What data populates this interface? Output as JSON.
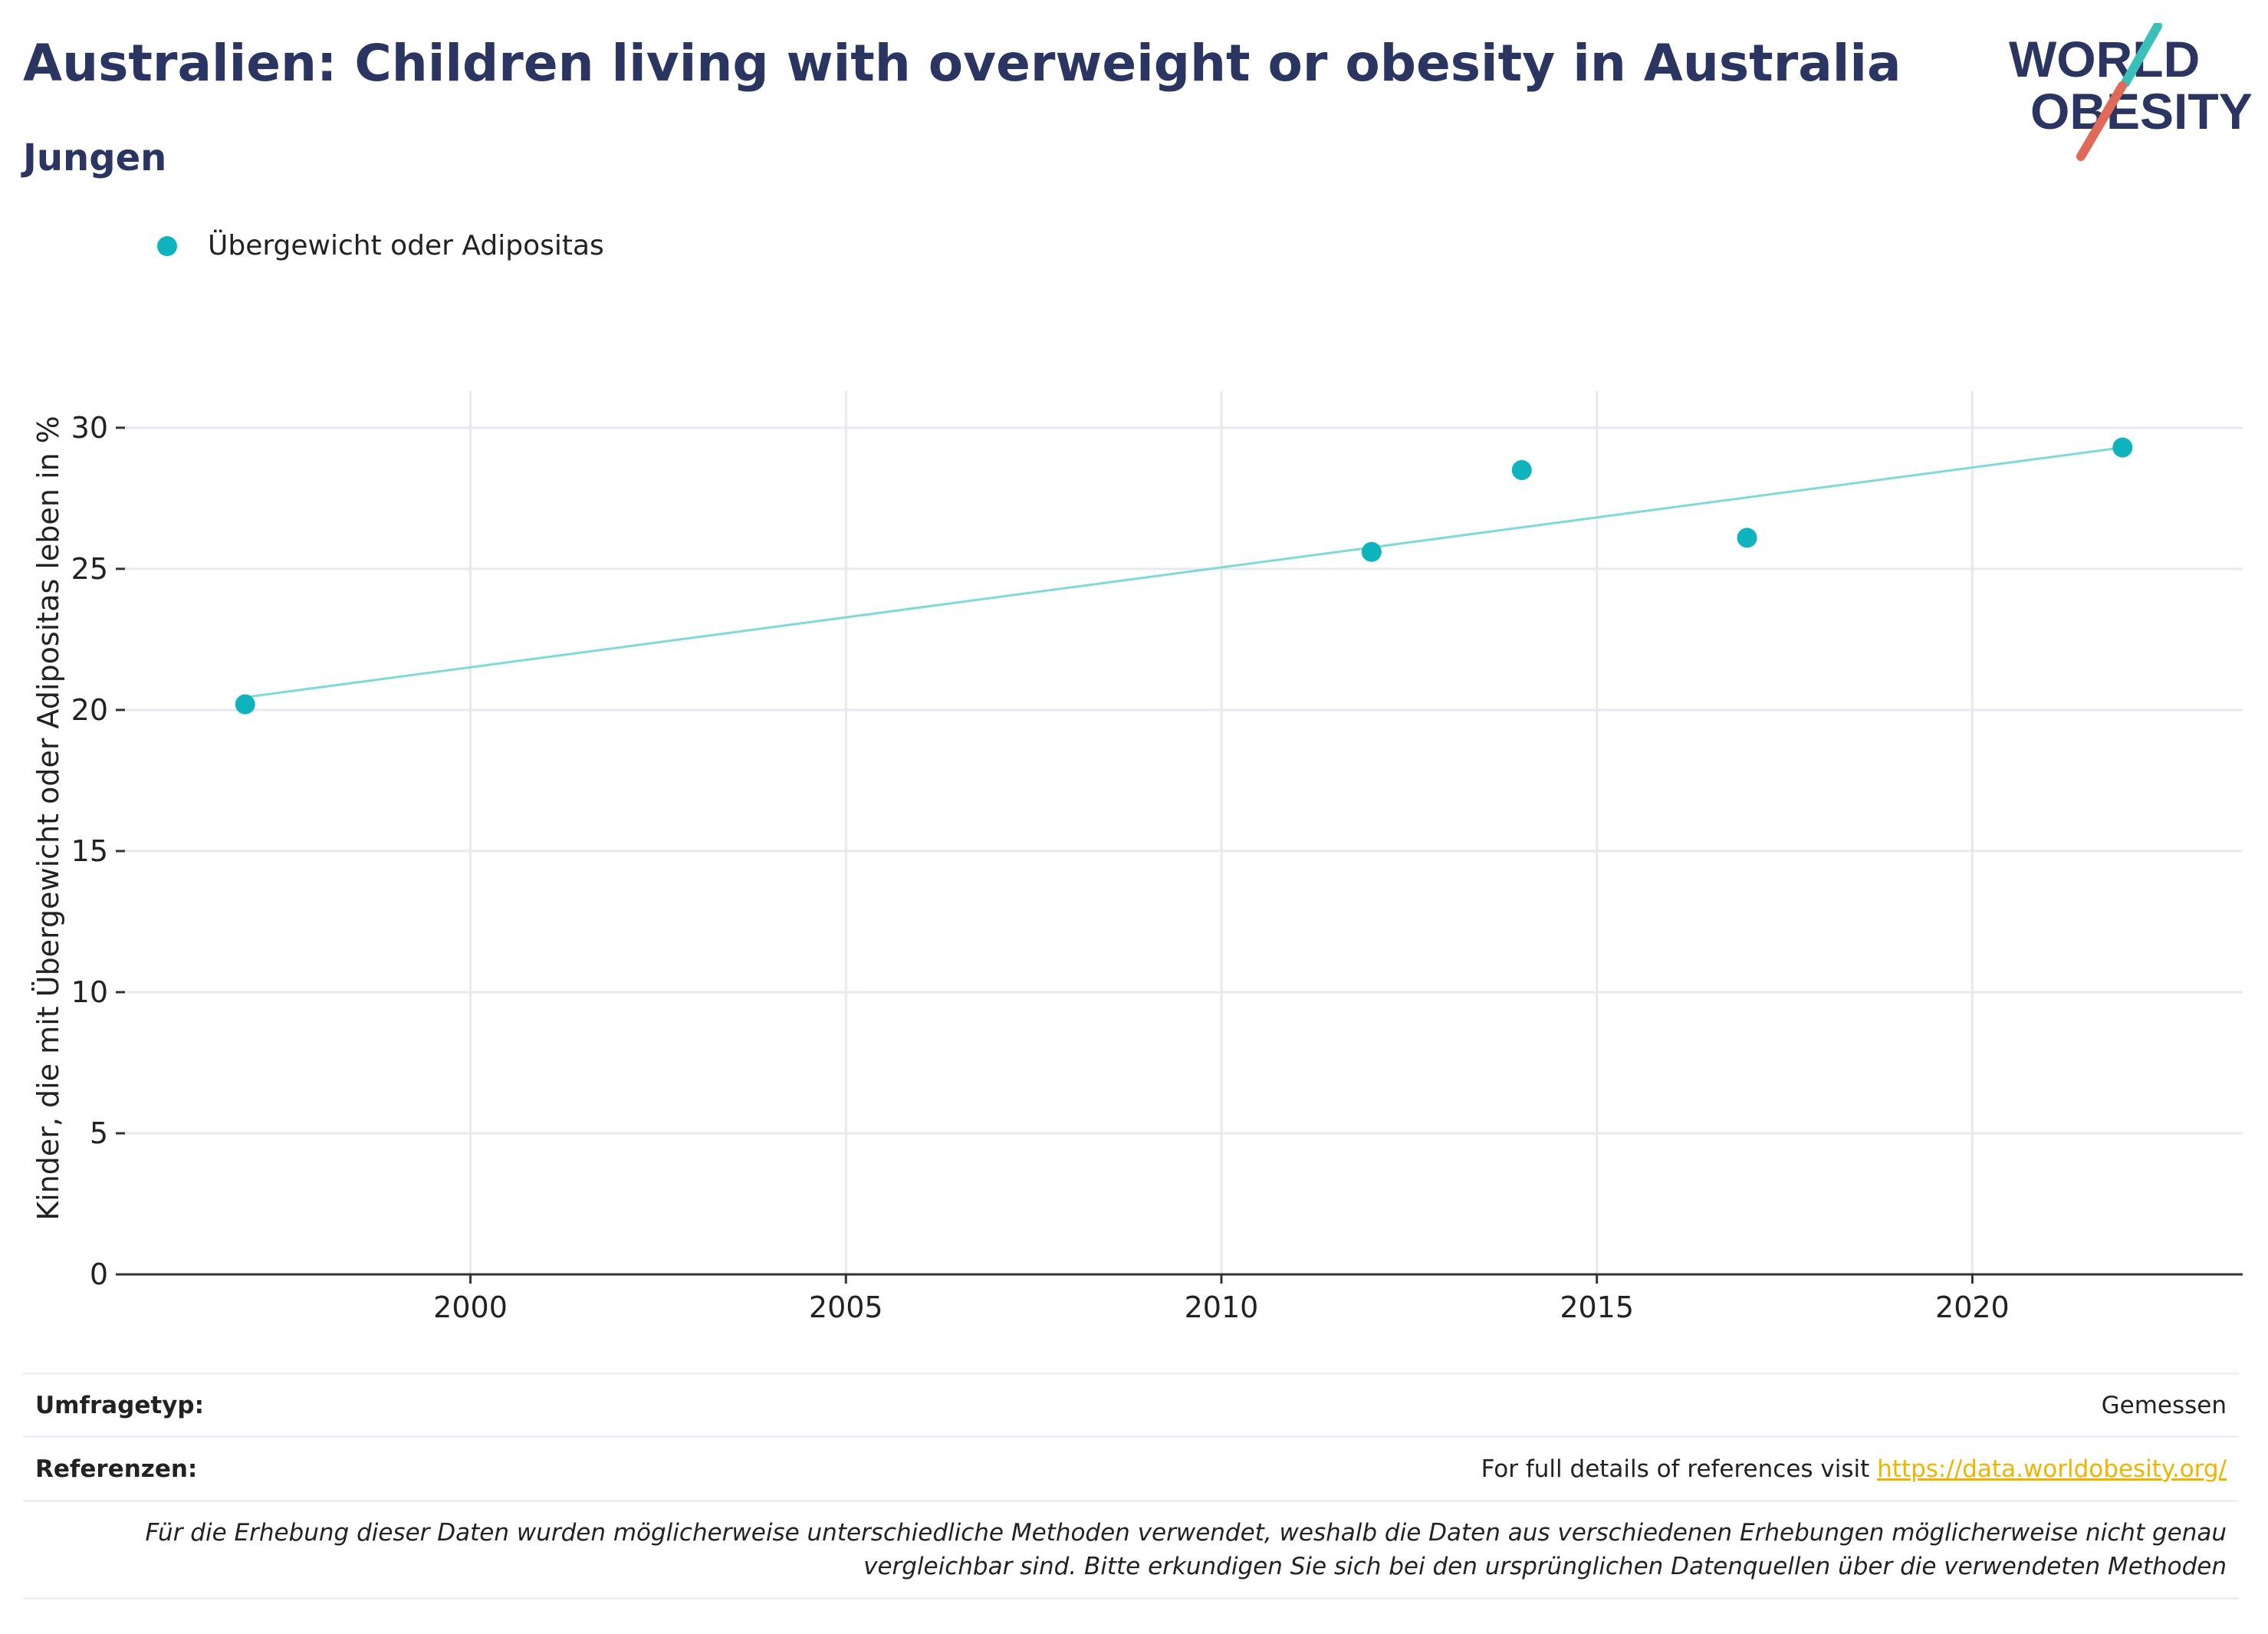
{
  "header": {
    "title": "Australien: Children living with overweight or obesity in Australia",
    "subtitle": "Jungen"
  },
  "logo": {
    "line1": "WORLD",
    "line2": "OBESITY"
  },
  "colors": {
    "accent": "#0fb3bd",
    "trend": "#7fd8dc",
    "title": "#2b3561",
    "link": "#f0b400"
  },
  "legend": {
    "label": "Übergewicht oder Adipositas"
  },
  "chart_data": {
    "type": "scatter",
    "ylabel": "Kinder, die mit Übergewicht oder Adipositas leben in %",
    "xlabel": "",
    "xlim": [
      1995.4,
      2023.6
    ],
    "ylim": [
      0,
      31.3
    ],
    "x_ticks": [
      2000,
      2005,
      2010,
      2015,
      2020
    ],
    "y_ticks": [
      0,
      5,
      10,
      15,
      20,
      25,
      30
    ],
    "grid": true,
    "legend_position": "top-left",
    "series": [
      {
        "name": "Übergewicht oder Adipositas",
        "x": [
          1997,
          2012,
          2014,
          2017,
          2022
        ],
        "y": [
          20.2,
          25.6,
          28.5,
          26.1,
          29.3
        ]
      }
    ],
    "trendline": {
      "x": [
        1997,
        2022
      ],
      "y": [
        20.45,
        29.3
      ]
    }
  },
  "footer": {
    "survey_label": "Umfragetyp:",
    "survey_value": "Gemessen",
    "references_label": "Referenzen:",
    "references_text": "For full details of references visit ",
    "references_link": "https://data.worldobesity.org/",
    "note_line1": "Für die Erhebung dieser Daten wurden möglicherweise unterschiedliche Methoden verwendet, weshalb die Daten aus verschiedenen Erhebungen möglicherweise nicht genau",
    "note_line2": "vergleichbar sind. Bitte erkundigen Sie sich bei den ursprünglichen Datenquellen über die verwendeten Methoden"
  }
}
